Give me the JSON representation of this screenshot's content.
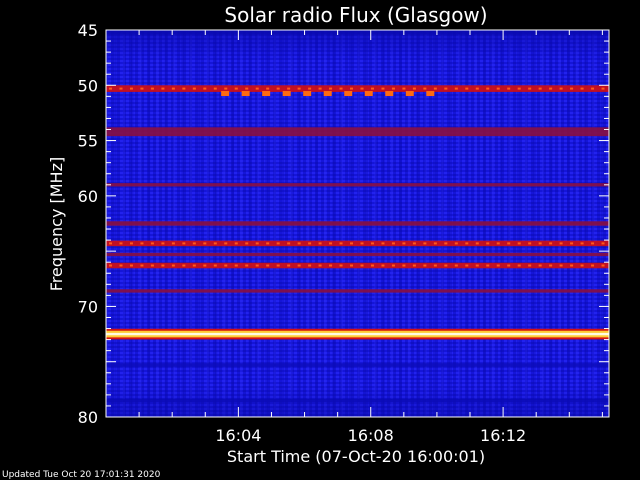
{
  "chart_data": {
    "type": "heatmap",
    "title": "Solar radio Flux (Glasgow)",
    "ylabel": "Frequency [MHz]",
    "xlabel": "Start Time (07-Oct-20 16:00:01)",
    "footer": "Updated Tue Oct 20 17:01:31 2020",
    "y_ticks": [
      45,
      50,
      55,
      60,
      65,
      70,
      75,
      80
    ],
    "y_tick_labels": [
      "45",
      "50",
      "55",
      "60",
      "",
      "70",
      "",
      "80"
    ],
    "ylim": [
      45,
      80
    ],
    "x_ticks": [
      "16:04",
      "16:08",
      "16:12"
    ],
    "x_tick_minutes": [
      4,
      8,
      12
    ],
    "xlim_minutes": [
      0,
      15.2
    ],
    "colors": {
      "background_blue": "#1a1ae6",
      "deep_blue": "#0b0bb8",
      "band_dark_red": "#8a1040",
      "band_red": "#d41010",
      "band_bright": "#ffcc33",
      "band_core": "#fffbe0"
    },
    "bands": [
      {
        "freq": 45.2,
        "width": 0.4,
        "level": "deep"
      },
      {
        "freq": 50.3,
        "width": 0.6,
        "level": "red"
      },
      {
        "freq": 54.2,
        "width": 0.8,
        "level": "dark-red"
      },
      {
        "freq": 59.0,
        "width": 0.3,
        "level": "dark-red"
      },
      {
        "freq": 62.5,
        "width": 0.4,
        "level": "dark-red"
      },
      {
        "freq": 64.3,
        "width": 0.5,
        "level": "red"
      },
      {
        "freq": 65.3,
        "width": 0.3,
        "level": "dark-red"
      },
      {
        "freq": 66.3,
        "width": 0.5,
        "level": "red"
      },
      {
        "freq": 68.6,
        "width": 0.3,
        "level": "dark-red"
      },
      {
        "freq": 72.5,
        "width": 0.6,
        "level": "bright"
      },
      {
        "freq": 75.3,
        "width": 0.3,
        "level": "deep"
      },
      {
        "freq": 78.5,
        "width": 0.3,
        "level": "deep"
      }
    ],
    "burst_row": {
      "freq": 50.7,
      "start_minute": 3.6,
      "end_minute": 9.8,
      "count": 11
    }
  }
}
